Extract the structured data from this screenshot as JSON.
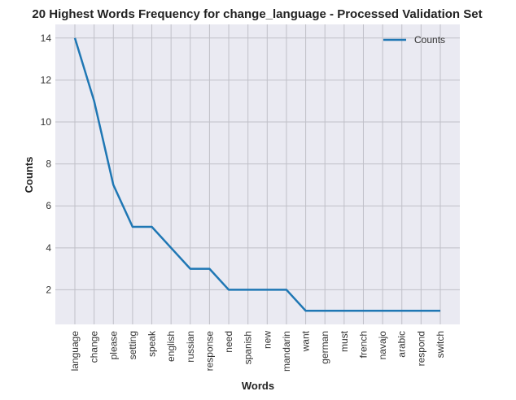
{
  "colors": {
    "plot_background": "#EAEAF2",
    "grid": "#C0C0C8",
    "series_line": "#1F77B4"
  },
  "chart_data": {
    "type": "line",
    "title": "20 Highest Words Frequency for change_language - Processed Validation Set",
    "xlabel": "Words",
    "ylabel": "Counts",
    "categories": [
      "language",
      "change",
      "please",
      "setting",
      "speak",
      "english",
      "russian",
      "response",
      "need",
      "spanish",
      "new",
      "mandarin",
      "want",
      "german",
      "must",
      "french",
      "navajo",
      "arabic",
      "respond",
      "switch"
    ],
    "series": [
      {
        "name": "Counts",
        "values": [
          14,
          11,
          7,
          5,
          5,
          4,
          3,
          3,
          2,
          2,
          2,
          2,
          1,
          1,
          1,
          1,
          1,
          1,
          1,
          1
        ]
      }
    ],
    "yticks": [
      2,
      4,
      6,
      8,
      10,
      12,
      14
    ],
    "ylim": [
      0.35,
      14.65
    ],
    "grid": true,
    "legend_position": "top-right"
  }
}
